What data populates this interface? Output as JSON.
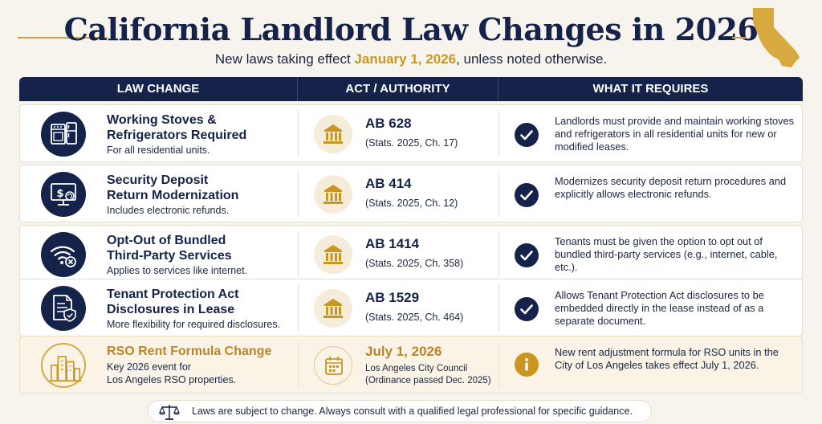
{
  "header": {
    "title": "California Landlord Law Changes in 2026",
    "subtitle_pre": "New laws taking effect",
    "subtitle_highlight": "January 1, 2026",
    "subtitle_post": ", unless noted otherwise."
  },
  "table": {
    "columns": [
      "LAW CHANGE",
      "ACT / AUTHORITY",
      "WHAT IT REQUIRES"
    ],
    "rows": [
      {
        "icon": "appliances-icon",
        "law_title_1": "Working Stoves &",
        "law_title_2": "Refrigerators Required",
        "law_sub_1": "For all residential units.",
        "law_sub_2": "",
        "act_title": "AB 628",
        "act_sub": "(Stats. 2025, Ch. 17)",
        "req_icon": "check-icon",
        "req_text": "Landlords must provide and maintain working stoves and refrigerators in all residential units for new or modified leases."
      },
      {
        "icon": "monitor-dollar-icon",
        "law_title_1": "Security Deposit",
        "law_title_2": "Return Modernization",
        "law_sub_1": "Includes electronic refunds.",
        "law_sub_2": "",
        "act_title": "AB 414",
        "act_sub": "(Stats. 2025, Ch. 12)",
        "req_icon": "check-icon",
        "req_text": "Modernizes security deposit return procedures and explicitly allows electronic refunds."
      },
      {
        "icon": "wifi-cancel-icon",
        "law_title_1": "Opt-Out of Bundled",
        "law_title_2": "Third-Party Services",
        "law_sub_1": "Applies to services like internet.",
        "law_sub_2": "",
        "act_title": "AB 1414",
        "act_sub": "(Stats. 2025, Ch. 358)",
        "req_icon": "check-icon",
        "req_text": "Tenants must be given the option to opt out of bundled third-party services (e.g., internet, cable, etc.)."
      },
      {
        "icon": "document-shield-icon",
        "law_title_1": "Tenant Protection Act",
        "law_title_2": "Disclosures in Lease",
        "law_sub_1": "More flexibility for required disclosures.",
        "law_sub_2": "",
        "act_title": "AB 1529",
        "act_sub": "(Stats. 2025, Ch. 464)",
        "req_icon": "check-icon",
        "req_text": "Allows Tenant Protection Act disclosures to be embedded directly in the lease instead of as a separate document."
      },
      {
        "icon": "city-buildings-icon",
        "law_title_1": "RSO Rent Formula Change",
        "law_title_2": "",
        "law_sub_1": "Key 2026 event for",
        "law_sub_2": "Los Angeles RSO properties.",
        "act_title": "July 1, 2026",
        "act_sub_1": "Los Angeles City Council",
        "act_sub_2": "(Ordinance passed Dec. 2025)",
        "req_icon": "info-icon",
        "req_text": "New rent adjustment formula for RSO units in the City of Los Angeles takes effect July 1, 2026."
      }
    ]
  },
  "footer": {
    "text": "Laws are subject to change. Always consult with a qualified legal professional for specific guidance."
  },
  "colors": {
    "navy": "#15234a",
    "gold": "#c9961f",
    "background": "#f7f4ee"
  }
}
